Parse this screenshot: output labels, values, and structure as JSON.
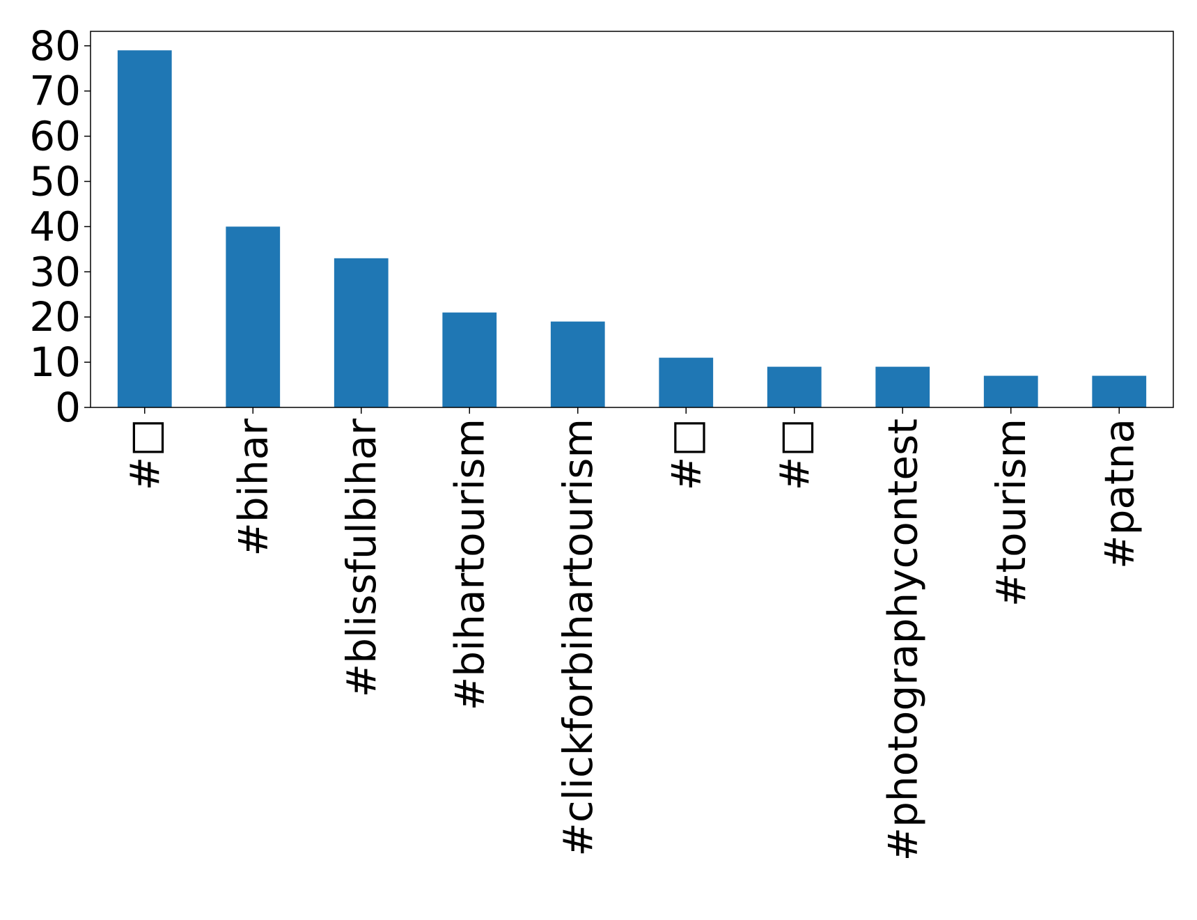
{
  "chart_data": {
    "type": "bar",
    "title": "",
    "xlabel": "",
    "ylabel": "",
    "categories": [
      "#□",
      "#bihar",
      "#blissfulbihar",
      "#bihartourism",
      "#clickforbihartourism",
      "#□",
      "#□",
      "#photographycontest",
      "#tourism",
      "#patna"
    ],
    "values": [
      79,
      40,
      33,
      21,
      19,
      11,
      9,
      9,
      7,
      7
    ],
    "ylim": [
      0,
      83.2
    ],
    "yticks": [
      0,
      10,
      20,
      30,
      40,
      50,
      60,
      70,
      80
    ],
    "bar_color": "#1f77b4",
    "grid": false,
    "legend": "none",
    "x_tick_rotation": "vertical"
  }
}
